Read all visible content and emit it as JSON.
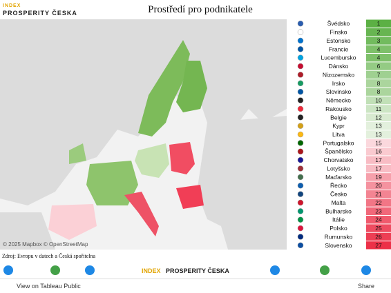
{
  "header": {
    "logo_top": "INDEX",
    "logo_bottom": "PROSPERITY ČESKA",
    "title": "Prostředí pro podnikatele"
  },
  "map": {
    "attribution": "© 2025 Mapbox  © OpenStreetMap"
  },
  "table": {
    "rows": [
      [
        "Švédsko",
        1
      ],
      [
        "Finsko",
        2
      ],
      [
        "Estonsko",
        3
      ],
      [
        "Francie",
        4
      ],
      [
        "Lucembursko",
        4
      ],
      [
        "Dánsko",
        6
      ],
      [
        "Nizozemsko",
        7
      ],
      [
        "Irsko",
        8
      ],
      [
        "Slovinsko",
        8
      ],
      [
        "Německo",
        10
      ],
      [
        "Rakousko",
        11
      ],
      [
        "Belgie",
        12
      ],
      [
        "Kypr",
        13
      ],
      [
        "Litva",
        13
      ],
      [
        "Portugalsko",
        15
      ],
      [
        "Španělsko",
        16
      ],
      [
        "Chorvatsko",
        17
      ],
      [
        "Lotyšsko",
        17
      ],
      [
        "Maďarsko",
        19
      ],
      [
        "Řecko",
        20
      ],
      [
        "Česko",
        21
      ],
      [
        "Malta",
        22
      ],
      [
        "Bulharsko",
        23
      ],
      [
        "Itálie",
        24
      ],
      [
        "Polsko",
        25
      ],
      [
        "Rumunsko",
        26
      ],
      [
        "Slovensko",
        27
      ]
    ]
  },
  "source": "Zdroj: Evropu v datech a Česká spořitelna",
  "banner": {
    "index": "INDEX",
    "prosperity": "PROSPERITY ČESKA"
  },
  "toolbar": {
    "view": "View on Tableau Public",
    "share": "Share"
  }
}
